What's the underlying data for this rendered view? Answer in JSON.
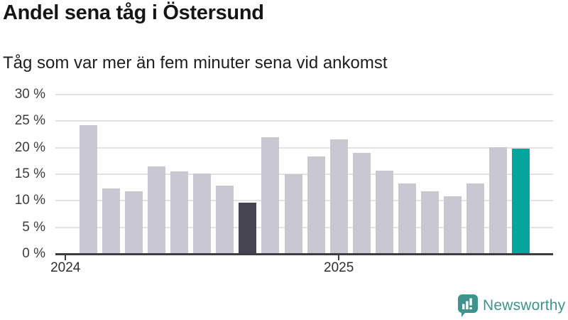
{
  "chart_data": {
    "type": "bar",
    "title": "Andel sena tåg i Östersund",
    "subtitle": "Tåg som var mer än fem minuter sena vid ankomst",
    "unit": "%",
    "categories": [
      "2024-02",
      "2024-03",
      "2024-04",
      "2024-05",
      "2024-06",
      "2024-07",
      "2024-08",
      "2024-09",
      "2024-10",
      "2024-11",
      "2024-12",
      "2025-01",
      "2025-02",
      "2025-03",
      "2025-04",
      "2025-05",
      "2025-06",
      "2025-07",
      "2025-08",
      "2025-09"
    ],
    "values": [
      24.2,
      12.3,
      11.8,
      16.5,
      15.5,
      15.1,
      12.9,
      9.7,
      22.0,
      15.0,
      18.4,
      21.6,
      19.0,
      15.7,
      13.3,
      11.8,
      10.9,
      13.3,
      20.1,
      19.8
    ],
    "highlight_dark_index": 7,
    "highlight_teal_index": 19,
    "ylim": [
      0,
      30
    ],
    "yticks": [
      {
        "value": 30,
        "label": "30 %"
      },
      {
        "value": 25,
        "label": "25 %"
      },
      {
        "value": 20,
        "label": "20 %"
      },
      {
        "value": 15,
        "label": "15 %"
      },
      {
        "value": 10,
        "label": "10 %"
      },
      {
        "value": 5,
        "label": "5 %"
      },
      {
        "value": 0,
        "label": "0 %"
      }
    ],
    "xticks": [
      {
        "label": "2024",
        "month_offset": -1
      },
      {
        "label": "2025",
        "month_offset": 11
      }
    ],
    "grid": true,
    "legend": false
  },
  "colors": {
    "bar_default": "#c9c7d1",
    "bar_dark": "#454450",
    "bar_teal": "#05a59c",
    "gridline": "#e3e3e3",
    "axis": "#3d3d45",
    "brand": "#3d948d"
  },
  "branding": {
    "name": "Newsworthy",
    "icon": "newsworthy-speech-bubble-chart-icon"
  }
}
